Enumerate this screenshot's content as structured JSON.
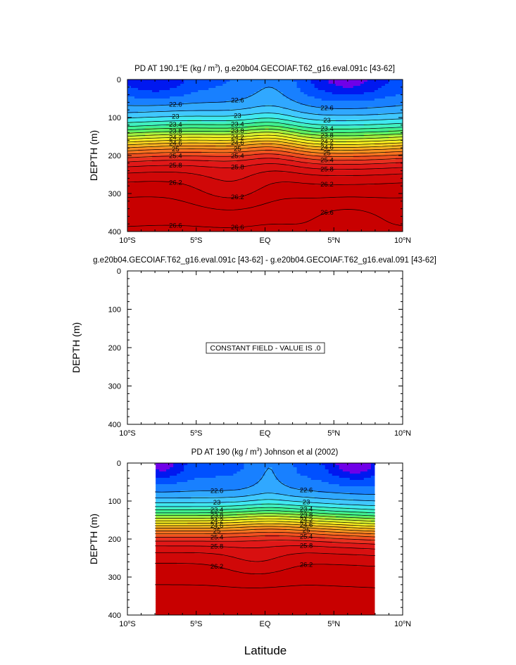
{
  "figure": {
    "xlabel": "Latitude"
  },
  "chart_data": [
    {
      "type": "heatmap",
      "title_prefix": "PD AT 190.1",
      "title_sup": "o",
      "title_mid": "E (kg / m",
      "title_sup2": "3",
      "title_suffix": "), g.e20b04.GECOIAF.T62_g16.eval.091c [43-62]",
      "ylabel": "DEPTH (m)",
      "xlim": [
        -10,
        10
      ],
      "ylim": [
        400,
        0
      ],
      "contour_labels": [
        "22.6",
        "23",
        "23.4",
        "23.8",
        "24.2",
        "24.6",
        "25",
        "25.4",
        "25.8",
        "26.2",
        "26.6"
      ]
    },
    {
      "type": "heatmap",
      "title": "g.e20b04.GECOIAF.T62_g16.eval.091c [43-62] - g.e20b04.GECOIAF.T62_g16.eval.091 [43-62]",
      "ylabel": "DEPTH (m)",
      "xlim": [
        -10,
        10
      ],
      "ylim": [
        400,
        0
      ],
      "message": "CONSTANT FIELD - VALUE IS .0"
    },
    {
      "type": "heatmap",
      "title_prefix": "PD AT 190 (kg / m",
      "title_sup": "3",
      "title_suffix": ") Johnson et al (2002)",
      "ylabel": "DEPTH (m)",
      "xlim": [
        -10,
        10
      ],
      "ylim": [
        400,
        0
      ],
      "data_xrange": [
        -8,
        8
      ],
      "contour_labels": [
        "22.6",
        "23",
        "23.4",
        "23.8",
        "24.2",
        "24.6",
        "25",
        "25.4",
        "25.8",
        "26.2",
        "26.6"
      ]
    }
  ],
  "axis": {
    "xticks": [
      {
        "v": -10,
        "main": "10",
        "sup": "o",
        "suf": "S"
      },
      {
        "v": -5,
        "main": "5",
        "sup": "o",
        "suf": "S"
      },
      {
        "v": 0,
        "main": "EQ",
        "sup": "",
        "suf": ""
      },
      {
        "v": 5,
        "main": "5",
        "sup": "o",
        "suf": "N"
      },
      {
        "v": 10,
        "main": "10",
        "sup": "o",
        "suf": "N"
      }
    ],
    "yticks": [
      0,
      100,
      200,
      300,
      400
    ]
  },
  "colors": {
    "scale": [
      "#0018f0",
      "#0050ff",
      "#1880ff",
      "#30a8ff",
      "#40c8ff",
      "#40e8f0",
      "#40f0c0",
      "#40f090",
      "#60f060",
      "#a0f040",
      "#d8f030",
      "#f8f020",
      "#f8d020",
      "#f8b020",
      "#f89020",
      "#f87020",
      "#f05020",
      "#e83020",
      "#e01818",
      "#d81010",
      "#d00808",
      "#c80000"
    ],
    "top": "#7000e8"
  }
}
